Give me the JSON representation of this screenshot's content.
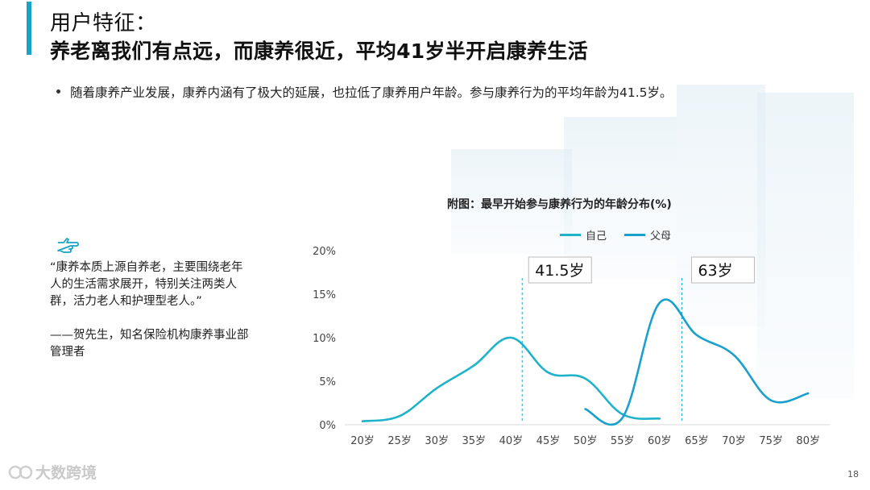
{
  "title": {
    "line1": "用户特征：",
    "line2": "养老离我们有点远，而康养很近，平均41岁半开启康养生活"
  },
  "bullet": "随着康养产业发展，康养内涵有了极大的延展，也拉低了康养用户年龄。参与康养行为的平均年龄为41.5岁。",
  "quote": {
    "icon": "pointing-hand-icon",
    "text": "“康养本质上源自养老，主要围绕老年人的生活需求展开，特别关注两类人群，活力老人和护理型老人。”",
    "author": "——贺先生，知名保险机构康养事业部管理者"
  },
  "footer": {
    "watermark": "大数跨境",
    "page": "18"
  },
  "colors": {
    "accent": "#1aa3c8",
    "series_self": "#1fb3c9",
    "series_parents": "#1aa0cc"
  },
  "chart_data": {
    "type": "line",
    "title": "附图：最早开始参与康养行为的年龄分布(%)",
    "categories": [
      "20岁",
      "25岁",
      "30岁",
      "35岁",
      "40岁",
      "45岁",
      "50岁",
      "55岁",
      "60岁",
      "65岁",
      "70岁",
      "75岁",
      "80岁"
    ],
    "ylim": [
      0,
      20
    ],
    "yticks": [
      0,
      5,
      10,
      15,
      20
    ],
    "ytick_labels": [
      "0%",
      "5%",
      "10%",
      "15%",
      "20%"
    ],
    "legend_position": "top",
    "series": [
      {
        "name": "自己",
        "values": [
          0.4,
          1.0,
          4.2,
          6.8,
          10.0,
          6.0,
          5.3,
          1.2,
          0.7,
          null,
          null,
          null,
          null
        ]
      },
      {
        "name": "父母",
        "values": [
          null,
          null,
          null,
          null,
          null,
          null,
          1.8,
          0.8,
          14.0,
          10.3,
          8.0,
          2.8,
          3.6
        ]
      }
    ],
    "annotations": [
      {
        "text": "41.5岁",
        "x_category": 4.3
      },
      {
        "text": "63岁",
        "x_category": 8.6
      }
    ]
  }
}
